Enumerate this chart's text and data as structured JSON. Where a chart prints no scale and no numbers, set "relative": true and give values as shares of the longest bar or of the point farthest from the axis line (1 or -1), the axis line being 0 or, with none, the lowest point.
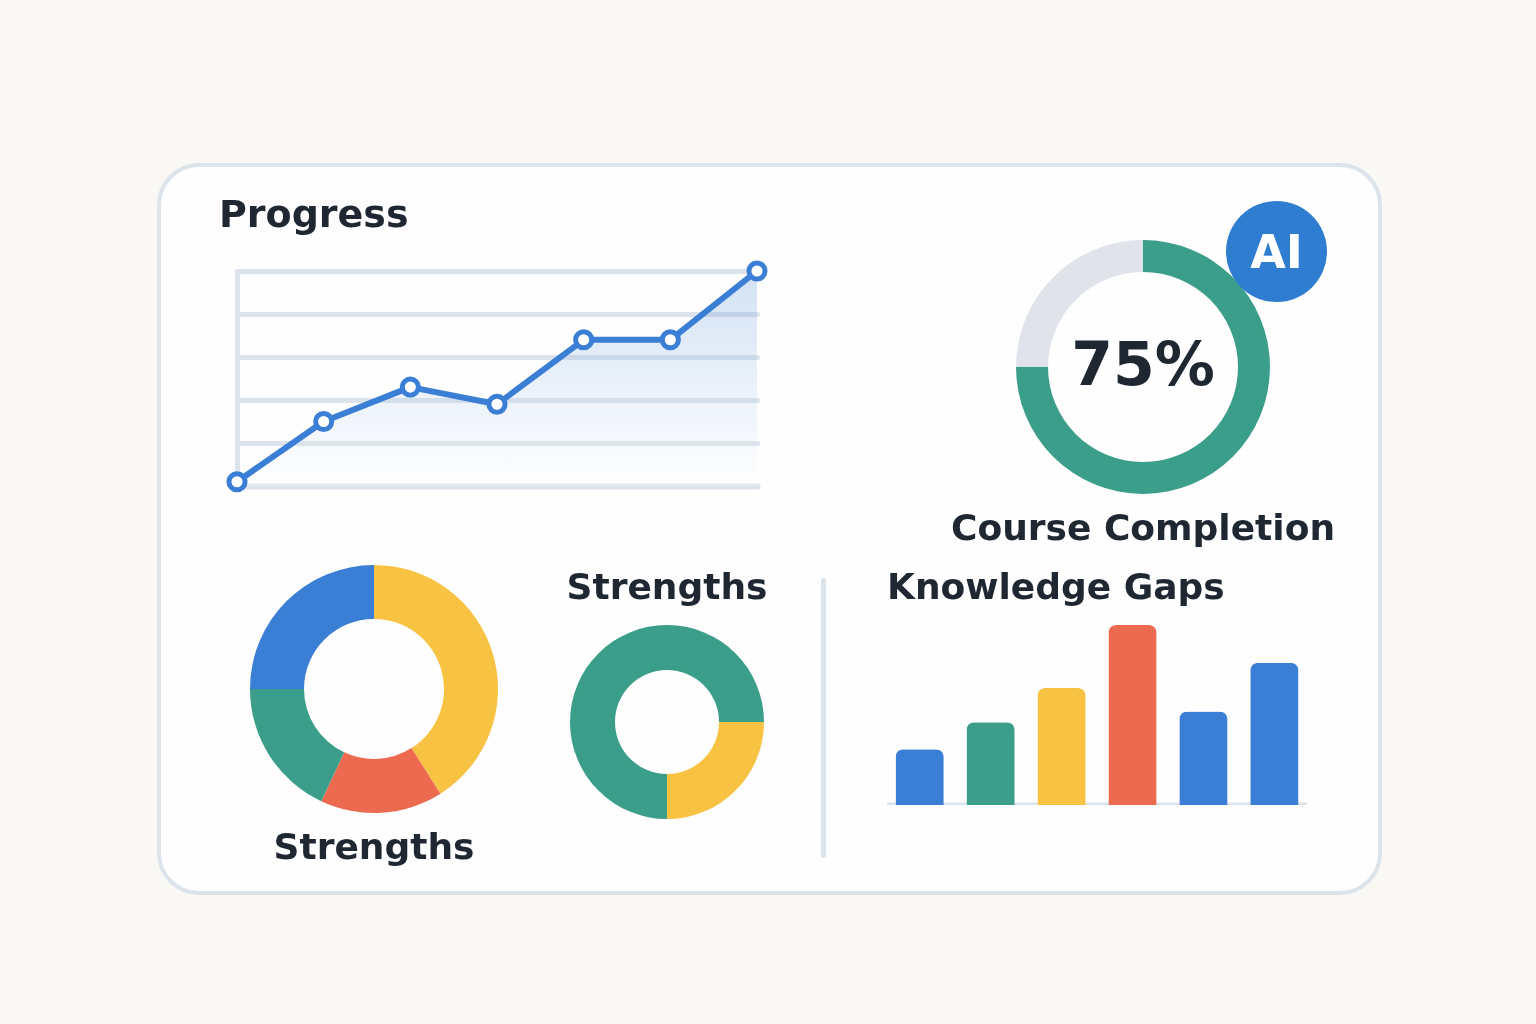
{
  "chart_data": [
    {
      "type": "area",
      "title": "Progress",
      "relative": true,
      "grid": "y",
      "marker": "circle",
      "categories": [
        null,
        null,
        null,
        null,
        null,
        null,
        null
      ],
      "series": [
        {
          "color": "#3a7fd5",
          "values": [
            0.02,
            0.3,
            0.46,
            0.38,
            0.68,
            0.68,
            1
          ]
        }
      ]
    },
    {
      "type": "donut",
      "title": "Course Completion",
      "categories": [
        null,
        null
      ],
      "values": [
        75,
        25
      ],
      "colors": [
        "#3a9e8a",
        "#e0e4ea"
      ],
      "value_labels": [
        "75%",
        null
      ]
    },
    {
      "type": "other",
      "annotations": [
        "AI"
      ]
    },
    {
      "type": "donut",
      "title": "Strengths",
      "categories": [
        null,
        null,
        null,
        null
      ],
      "values": [
        41,
        16,
        18,
        25
      ],
      "colors": [
        "#f8c242",
        "#ec6b50",
        "#3a9e8a",
        "#3a7fd5"
      ]
    },
    {
      "type": "donut",
      "title": "Strengths",
      "categories": [
        null,
        null
      ],
      "values": [
        25,
        75
      ],
      "colors": [
        "#f8c242",
        "#3a9e8a"
      ]
    },
    {
      "type": "bar",
      "title": "Knowledge Gaps",
      "relative": true,
      "categories": [
        null,
        null,
        null,
        null,
        null,
        null
      ],
      "values": [
        0.31,
        0.46,
        0.65,
        1,
        0.52,
        0.79
      ],
      "colors": [
        "#3a7fd5",
        "#3a9e8a",
        "#f8c242",
        "#ec6b50",
        "#3a7fd5",
        "#3a7fd5"
      ]
    }
  ]
}
